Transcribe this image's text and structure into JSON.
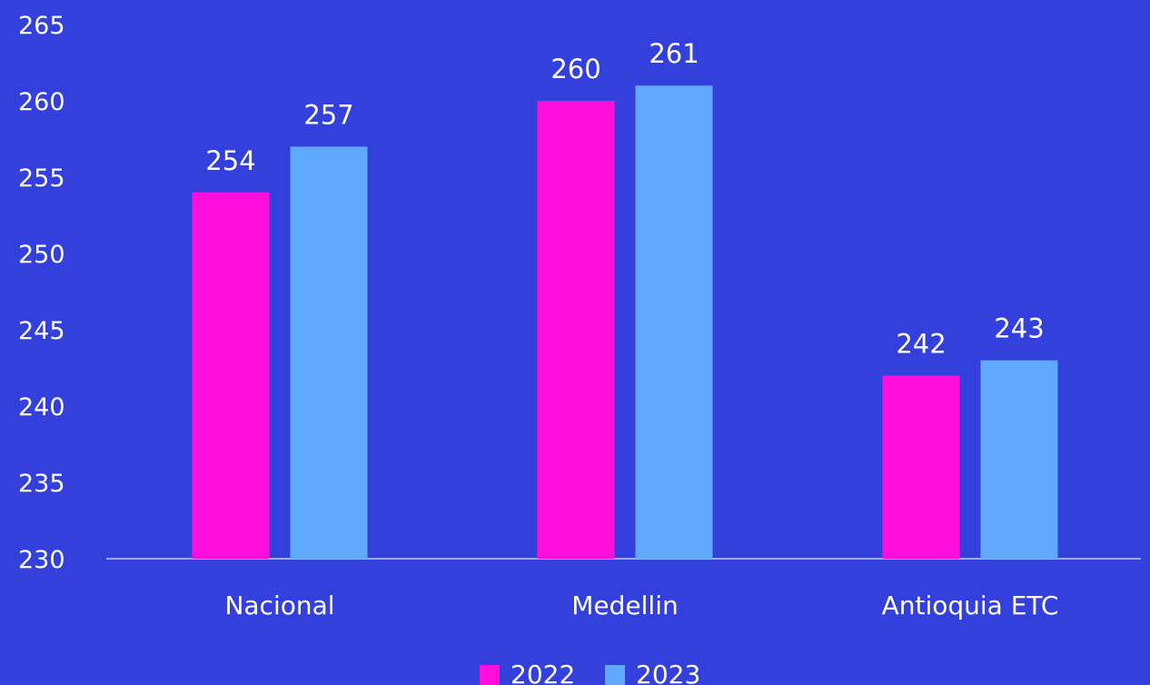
{
  "chart_data": {
    "type": "bar",
    "categories": [
      "Nacional",
      "Medellin",
      "Antioquia ETC"
    ],
    "series": [
      {
        "name": "2022",
        "values": [
          254,
          260,
          242
        ],
        "color": "#ff0fdc"
      },
      {
        "name": "2023",
        "values": [
          257,
          261,
          243
        ],
        "color": "#5fa9ff"
      }
    ],
    "title": "",
    "xlabel": "",
    "ylabel": "",
    "ylim": [
      230,
      265
    ],
    "yticks": [
      230,
      235,
      240,
      245,
      250,
      255,
      260,
      265
    ],
    "grid": false,
    "legend_position": "bottom-center",
    "background_color": "#3340dc",
    "axis_color": "#c9ccf5",
    "text_color": "#ffffff"
  }
}
